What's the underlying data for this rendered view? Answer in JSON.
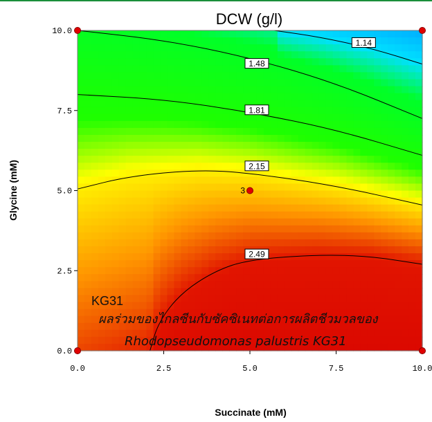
{
  "chart_data": {
    "type": "heatmap",
    "subtype": "contour",
    "title": "DCW (g/l)",
    "xlabel": "Succinate (mM)",
    "ylabel": "Glycine (mM)",
    "xlim": [
      0,
      10
    ],
    "ylim": [
      0,
      10
    ],
    "xticks": [
      "0.0",
      "2.5",
      "5.0",
      "7.5",
      "10.0"
    ],
    "yticks": [
      "0.0",
      "2.5",
      "5.0",
      "7.5",
      "10.0"
    ],
    "grid": false,
    "colormap": [
      "#0050ff",
      "#00e0ff",
      "#00ff00",
      "#ffff00",
      "#ff9900",
      "#e00000"
    ],
    "contours": [
      {
        "label": "1.14",
        "points": [
          [
            5.7,
            10.0
          ],
          [
            7.0,
            9.8
          ],
          [
            8.5,
            9.45
          ],
          [
            10.0,
            8.95
          ]
        ],
        "label_at": [
          8.3,
          9.6
        ]
      },
      {
        "label": "1.48",
        "points": [
          [
            0.0,
            10.0
          ],
          [
            2.5,
            9.7
          ],
          [
            5.0,
            9.15
          ],
          [
            7.5,
            8.35
          ],
          [
            10.0,
            7.25
          ]
        ],
        "label_at": [
          5.2,
          8.95
        ]
      },
      {
        "label": "1.81",
        "points": [
          [
            0.0,
            8.0
          ],
          [
            2.5,
            7.85
          ],
          [
            5.0,
            7.45
          ],
          [
            7.5,
            6.9
          ],
          [
            10.0,
            6.1
          ]
        ],
        "label_at": [
          5.2,
          7.5
        ]
      },
      {
        "label": "2.15",
        "points": [
          [
            0.0,
            5.05
          ],
          [
            1.5,
            5.45
          ],
          [
            3.5,
            5.65
          ],
          [
            5.0,
            5.55
          ],
          [
            7.5,
            5.15
          ],
          [
            10.0,
            4.55
          ]
        ],
        "label_at": [
          5.2,
          5.75
        ]
      },
      {
        "label": "2.49",
        "points": [
          [
            2.1,
            0.0
          ],
          [
            2.35,
            0.9
          ],
          [
            3.0,
            1.8
          ],
          [
            4.0,
            2.5
          ],
          [
            5.0,
            2.85
          ],
          [
            7.0,
            3.0
          ],
          [
            8.5,
            2.95
          ],
          [
            10.0,
            2.7
          ]
        ],
        "label_at": [
          5.2,
          3.0
        ]
      }
    ],
    "design_points": [
      {
        "x": 0,
        "y": 0
      },
      {
        "x": 0,
        "y": 10
      },
      {
        "x": 10,
        "y": 0
      },
      {
        "x": 10,
        "y": 10
      },
      {
        "x": 5,
        "y": 5,
        "label": "3"
      }
    ],
    "annotations": [
      "KG31",
      "ผลร่วมของไกลซีนกับซัคซิเนทต่อการผลิตชีวมวลของ",
      "Rhodopseudomonas palustris KG31"
    ]
  }
}
